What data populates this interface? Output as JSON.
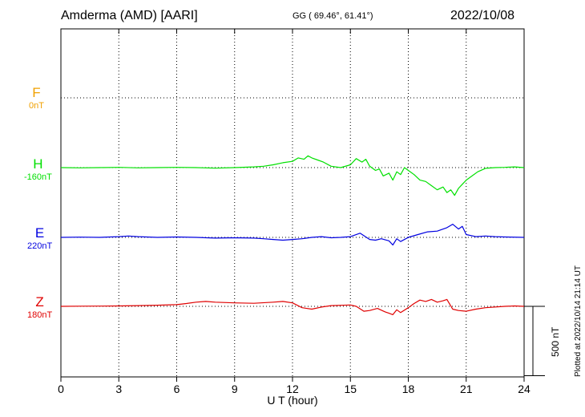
{
  "header": {
    "station": "Amderma (AMD)  [AARI]",
    "coords": "GG ( 69.46°,  61.41°)",
    "date": "2022/10/08"
  },
  "footer": {
    "plotted": "Plotted at 2022/10/14 21:14 UT",
    "scale": "500 nT"
  },
  "chart_data": {
    "type": "line",
    "xlabel": "U T (hour)",
    "xlim": [
      0,
      24
    ],
    "xticks": [
      0,
      3,
      6,
      9,
      12,
      15,
      18,
      21,
      24
    ],
    "grid": true,
    "scale_bar_nT": 500,
    "series": [
      {
        "name": "F",
        "offset_label": "0nT",
        "color": "#f0a000",
        "baseline_nT": 0,
        "x": [],
        "y": []
      },
      {
        "name": "H",
        "offset_label": "-160nT",
        "color": "#00e000",
        "baseline_nT": -160,
        "x": [
          0,
          1,
          2,
          3,
          4,
          5,
          6,
          7,
          8,
          9,
          10,
          10.5,
          11,
          11.5,
          12,
          12.3,
          12.6,
          12.8,
          13,
          13.3,
          13.6,
          14,
          14.5,
          15,
          15.3,
          15.6,
          15.8,
          16,
          16.3,
          16.5,
          16.7,
          17,
          17.2,
          17.4,
          17.6,
          17.8,
          18,
          18.3,
          18.6,
          18.9,
          19.2,
          19.5,
          19.8,
          20,
          20.2,
          20.4,
          20.6,
          20.8,
          21,
          21.3,
          21.6,
          22,
          22.5,
          23,
          23.5,
          24
        ],
        "y": [
          0,
          -2,
          0,
          2,
          -2,
          0,
          2,
          0,
          -4,
          0,
          5,
          10,
          20,
          35,
          45,
          70,
          60,
          85,
          70,
          55,
          40,
          10,
          0,
          20,
          65,
          40,
          60,
          10,
          -20,
          -10,
          -60,
          -40,
          -90,
          -30,
          -50,
          0,
          -20,
          -50,
          -90,
          -100,
          -130,
          -160,
          -140,
          -180,
          -160,
          -200,
          -150,
          -120,
          -90,
          -60,
          -30,
          -5,
          0,
          2,
          5,
          0
        ]
      },
      {
        "name": "E",
        "offset_label": "220nT",
        "color": "#0000e0",
        "baseline_nT": 220,
        "x": [
          0,
          1,
          2,
          3,
          3.5,
          4,
          5,
          6,
          7,
          8,
          9,
          10,
          10.5,
          11,
          11.5,
          12,
          12.5,
          13,
          13.5,
          14,
          14.5,
          15,
          15.5,
          16,
          16.3,
          16.6,
          17,
          17.2,
          17.4,
          17.6,
          18,
          18.5,
          19,
          19.5,
          20,
          20.3,
          20.6,
          20.8,
          21,
          21.5,
          22,
          22.5,
          23,
          24
        ],
        "y": [
          0,
          2,
          0,
          5,
          10,
          5,
          0,
          3,
          0,
          -5,
          -3,
          -5,
          -10,
          -15,
          -20,
          -15,
          -10,
          0,
          5,
          -3,
          0,
          5,
          30,
          -15,
          -20,
          -10,
          -25,
          -55,
          -10,
          -30,
          0,
          20,
          40,
          45,
          70,
          95,
          60,
          80,
          20,
          5,
          10,
          5,
          3,
          0
        ]
      },
      {
        "name": "Z",
        "offset_label": "180nT",
        "color": "#e00000",
        "baseline_nT": 180,
        "x": [
          0,
          1,
          2,
          3,
          4,
          5,
          6,
          6.5,
          7,
          7.5,
          8,
          9,
          10,
          11,
          11.5,
          12,
          12.5,
          13,
          13.5,
          14,
          15,
          15.3,
          15.7,
          16,
          16.4,
          16.8,
          17,
          17.2,
          17.4,
          17.6,
          18,
          18.3,
          18.6,
          18.9,
          19.2,
          19.5,
          19.8,
          20,
          20.3,
          20.6,
          21,
          21.5,
          22,
          23,
          23.5,
          24
        ],
        "y": [
          0,
          1,
          2,
          3,
          5,
          8,
          12,
          20,
          30,
          35,
          30,
          25,
          22,
          30,
          35,
          25,
          -10,
          -20,
          -5,
          5,
          10,
          0,
          -35,
          -30,
          -15,
          -40,
          -50,
          -60,
          -25,
          -45,
          -10,
          20,
          45,
          35,
          50,
          30,
          40,
          50,
          -20,
          -30,
          -35,
          -20,
          -10,
          0,
          3,
          0
        ]
      }
    ]
  }
}
